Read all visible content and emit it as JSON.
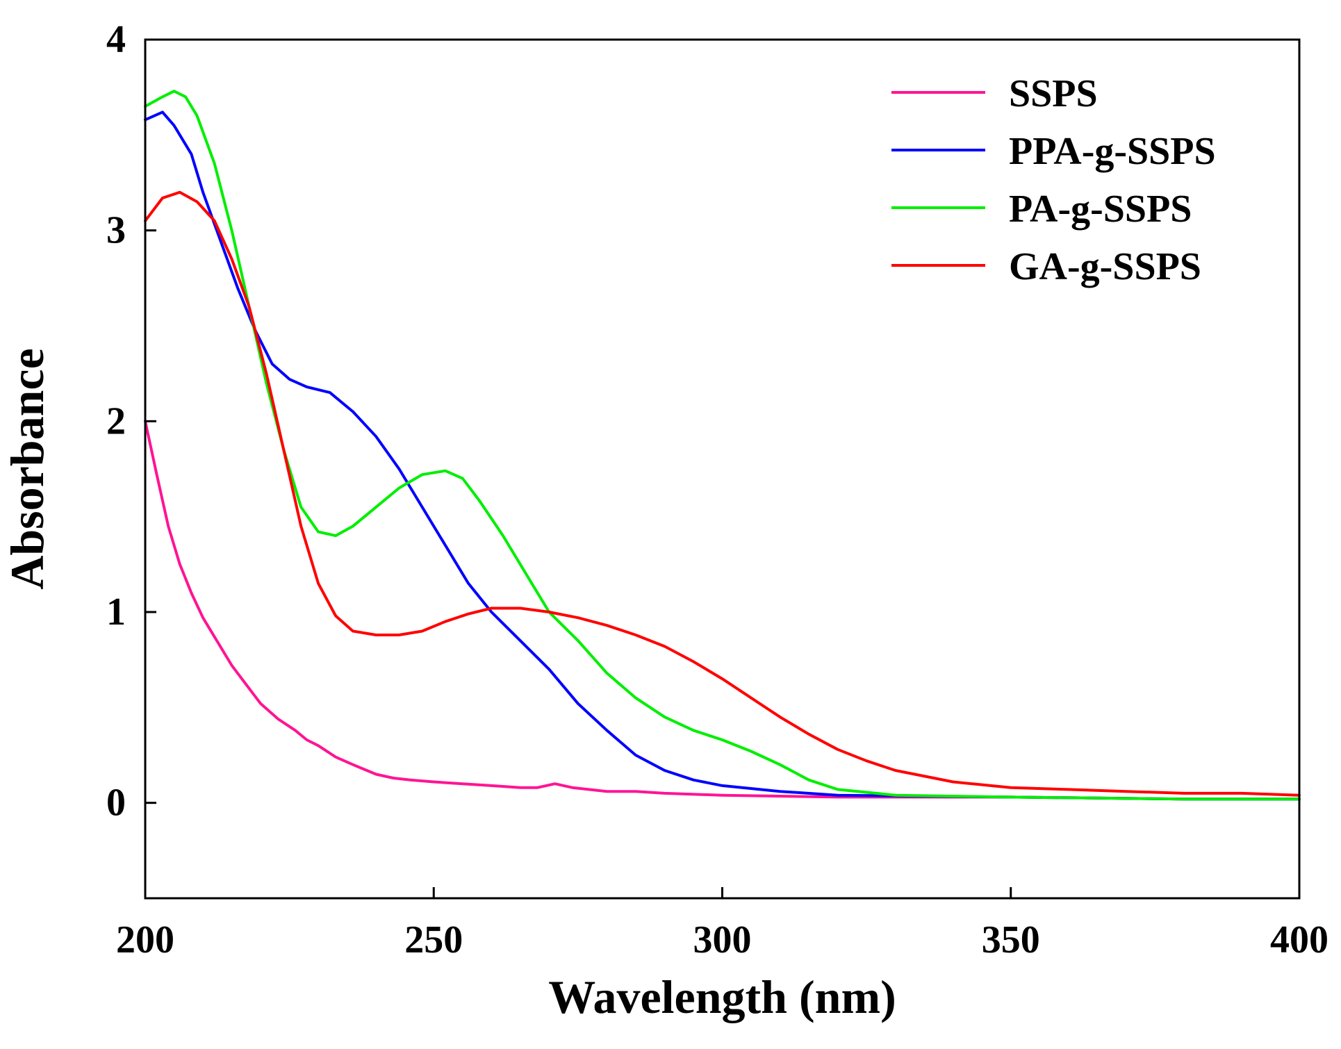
{
  "chart_data": {
    "type": "line",
    "title": "",
    "xlabel": "Wavelength (nm)",
    "ylabel": "Absorbance",
    "xlim": [
      200,
      400
    ],
    "ylim": [
      -0.5,
      4
    ],
    "xticks": [
      200,
      250,
      300,
      350,
      400
    ],
    "yticks": [
      0,
      1,
      2,
      3,
      4
    ],
    "grid": false,
    "legend_position": "top-right",
    "series": [
      {
        "name": "SSPS",
        "color": "#ff1493",
        "x": [
          200,
          202,
          204,
          206,
          208,
          210,
          212,
          215,
          218,
          220,
          223,
          226,
          228,
          230,
          233,
          236,
          240,
          243,
          246,
          250,
          255,
          260,
          265,
          268,
          271,
          274,
          280,
          285,
          290,
          300,
          320,
          350,
          380,
          400
        ],
        "y": [
          2.0,
          1.72,
          1.45,
          1.25,
          1.1,
          0.97,
          0.87,
          0.72,
          0.6,
          0.52,
          0.44,
          0.38,
          0.33,
          0.3,
          0.24,
          0.2,
          0.15,
          0.13,
          0.12,
          0.11,
          0.1,
          0.09,
          0.08,
          0.08,
          0.1,
          0.08,
          0.06,
          0.06,
          0.05,
          0.04,
          0.03,
          0.03,
          0.02,
          0.02
        ]
      },
      {
        "name": "PPA-g-SSPS",
        "color": "#0000ff",
        "x": [
          200,
          203,
          205,
          208,
          210,
          213,
          216,
          219,
          222,
          225,
          228,
          232,
          236,
          240,
          244,
          248,
          252,
          256,
          260,
          265,
          270,
          275,
          280,
          285,
          290,
          295,
          300,
          310,
          320,
          350,
          380,
          400
        ],
        "y": [
          3.58,
          3.62,
          3.55,
          3.4,
          3.2,
          2.95,
          2.7,
          2.48,
          2.3,
          2.22,
          2.18,
          2.15,
          2.05,
          1.92,
          1.75,
          1.55,
          1.35,
          1.15,
          1.0,
          0.85,
          0.7,
          0.52,
          0.38,
          0.25,
          0.17,
          0.12,
          0.09,
          0.06,
          0.04,
          0.03,
          0.02,
          0.02
        ]
      },
      {
        "name": "PA-g-SSPS",
        "color": "#00ee00",
        "x": [
          200,
          203,
          205,
          207,
          209,
          212,
          215,
          218,
          221,
          224,
          227,
          230,
          233,
          236,
          240,
          244,
          248,
          252,
          255,
          258,
          262,
          266,
          270,
          275,
          280,
          285,
          290,
          295,
          300,
          305,
          310,
          315,
          320,
          330,
          350,
          380,
          400
        ],
        "y": [
          3.65,
          3.7,
          3.73,
          3.7,
          3.6,
          3.35,
          3.0,
          2.6,
          2.2,
          1.85,
          1.55,
          1.42,
          1.4,
          1.45,
          1.55,
          1.65,
          1.72,
          1.74,
          1.7,
          1.58,
          1.4,
          1.2,
          1.0,
          0.85,
          0.68,
          0.55,
          0.45,
          0.38,
          0.33,
          0.27,
          0.2,
          0.12,
          0.07,
          0.04,
          0.03,
          0.02,
          0.02
        ]
      },
      {
        "name": "GA-g-SSPS",
        "color": "#ff0000",
        "x": [
          200,
          203,
          206,
          209,
          212,
          215,
          218,
          221,
          224,
          227,
          230,
          233,
          236,
          240,
          244,
          248,
          252,
          256,
          260,
          265,
          270,
          275,
          280,
          285,
          290,
          295,
          300,
          305,
          310,
          315,
          320,
          325,
          330,
          340,
          350,
          360,
          370,
          380,
          390,
          400
        ],
        "y": [
          3.05,
          3.17,
          3.2,
          3.15,
          3.05,
          2.85,
          2.6,
          2.25,
          1.85,
          1.45,
          1.15,
          0.98,
          0.9,
          0.88,
          0.88,
          0.9,
          0.95,
          0.99,
          1.02,
          1.02,
          1.0,
          0.97,
          0.93,
          0.88,
          0.82,
          0.74,
          0.65,
          0.55,
          0.45,
          0.36,
          0.28,
          0.22,
          0.17,
          0.11,
          0.08,
          0.07,
          0.06,
          0.05,
          0.05,
          0.04
        ]
      }
    ]
  }
}
